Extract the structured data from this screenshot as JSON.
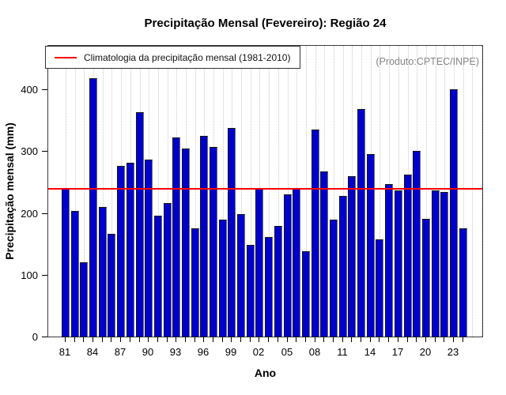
{
  "title": "Precipitação Mensal (Fevereiro): Região 24",
  "legend": {
    "label": "Climatologia da precipitação mensal (1981-2010)"
  },
  "watermark": "(Produto:CPTEC/INPE)",
  "x_axis": {
    "label": "Ano",
    "tick_labels": [
      "81",
      "84",
      "87",
      "90",
      "93",
      "96",
      "99",
      "02",
      "05",
      "08",
      "11",
      "14",
      "17",
      "20",
      "23"
    ]
  },
  "y_axis": {
    "label": "Precipitação mensal (mm)",
    "ticks": [
      0,
      100,
      200,
      300,
      400
    ]
  },
  "colors": {
    "bar_fill": "#0000cd",
    "bar_border": "#161616",
    "climatology_line": "#ff0000",
    "grid": "#c9c9c9",
    "watermark_text": "#858585",
    "frame": "#3c3c3c"
  },
  "chart_data": {
    "type": "bar",
    "title": "Precipitação Mensal (Fevereiro): Região 24",
    "xlabel": "Ano",
    "ylabel": "Precipitação mensal (mm)",
    "legend_position": "top-left",
    "grid": "vertical-dotted-per-year",
    "ylim": [
      0,
      470
    ],
    "climatology_1981_2010": 243,
    "x": [
      1981,
      1982,
      1983,
      1984,
      1985,
      1986,
      1987,
      1988,
      1989,
      1990,
      1991,
      1992,
      1993,
      1994,
      1995,
      1996,
      1997,
      1998,
      1999,
      2000,
      2001,
      2002,
      2003,
      2004,
      2005,
      2006,
      2007,
      2008,
      2009,
      2010,
      2011,
      2012,
      2013,
      2014,
      2015,
      2016,
      2017,
      2018,
      2019,
      2020,
      2021,
      2022,
      2023,
      2024
    ],
    "values": [
      240,
      204,
      121,
      420,
      211,
      168,
      277,
      282,
      365,
      288,
      197,
      217,
      324,
      305,
      176,
      326,
      308,
      190,
      339,
      199,
      150,
      241,
      162,
      180,
      232,
      240,
      139,
      336,
      268,
      190,
      229,
      261,
      370,
      297,
      158,
      248,
      238,
      263,
      302,
      192,
      238,
      235,
      401,
      177
    ]
  }
}
